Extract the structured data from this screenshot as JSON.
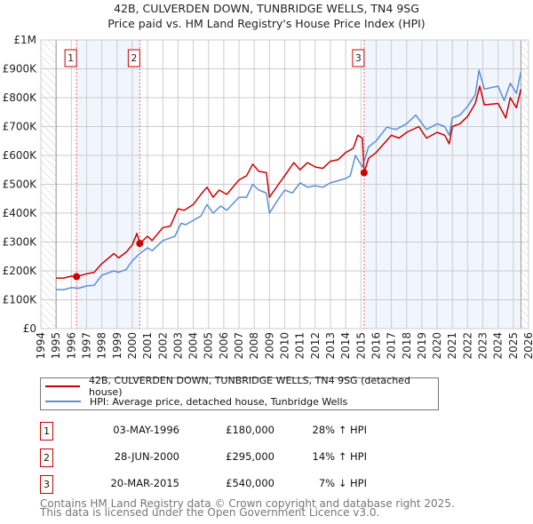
{
  "title_line1": "42B, CULVERDEN DOWN, TUNBRIDGE WELLS, TN4 9SG",
  "title_line2": "Price paid vs. HM Land Registry's House Price Index (HPI)",
  "chart_data": {
    "type": "line",
    "xlim": [
      1994,
      2026
    ],
    "ylim": [
      0,
      1000000
    ],
    "x_ticks": [
      "1994",
      "1995",
      "1996",
      "1997",
      "1998",
      "1999",
      "2000",
      "2001",
      "2002",
      "2003",
      "2004",
      "2005",
      "2006",
      "2007",
      "2008",
      "2009",
      "2010",
      "2011",
      "2012",
      "2013",
      "2014",
      "2015",
      "2016",
      "2017",
      "2018",
      "2019",
      "2020",
      "2021",
      "2022",
      "2023",
      "2024",
      "2025",
      "2026"
    ],
    "y_ticks": [
      {
        "v": 0,
        "label": "£0"
      },
      {
        "v": 100000,
        "label": "£100K"
      },
      {
        "v": 200000,
        "label": "£200K"
      },
      {
        "v": 300000,
        "label": "£300K"
      },
      {
        "v": 400000,
        "label": "£400K"
      },
      {
        "v": 500000,
        "label": "£500K"
      },
      {
        "v": 600000,
        "label": "£600K"
      },
      {
        "v": 700000,
        "label": "£700K"
      },
      {
        "v": 800000,
        "label": "£800K"
      },
      {
        "v": 900000,
        "label": "£900K"
      },
      {
        "v": 1000000,
        "label": "£1M"
      }
    ],
    "grid": true,
    "data_range": [
      1995,
      2025.5
    ],
    "shaded_periods": [
      [
        1996.34,
        2000.49
      ],
      [
        2015.21,
        2025.5
      ]
    ],
    "series": [
      {
        "name": "42B, CULVERDEN DOWN, TUNBRIDGE WELLS, TN4 9SG (detached house)",
        "color": "#cc0000",
        "points": [
          [
            1995,
            175000
          ],
          [
            1995.5,
            175000
          ],
          [
            1996,
            182000
          ],
          [
            1996.34,
            180000
          ],
          [
            1997,
            190000
          ],
          [
            1997.5,
            195000
          ],
          [
            1998,
            225000
          ],
          [
            1998.8,
            260000
          ],
          [
            1999.1,
            245000
          ],
          [
            1999.6,
            265000
          ],
          [
            2000,
            290000
          ],
          [
            2000.3,
            330000
          ],
          [
            2000.5,
            295000
          ],
          [
            2001,
            320000
          ],
          [
            2001.3,
            305000
          ],
          [
            2002,
            350000
          ],
          [
            2002.5,
            355000
          ],
          [
            2003,
            415000
          ],
          [
            2003.4,
            410000
          ],
          [
            2004,
            430000
          ],
          [
            2004.5,
            465000
          ],
          [
            2004.9,
            490000
          ],
          [
            2005.3,
            455000
          ],
          [
            2005.7,
            480000
          ],
          [
            2006.2,
            465000
          ],
          [
            2007,
            515000
          ],
          [
            2007.5,
            530000
          ],
          [
            2007.9,
            570000
          ],
          [
            2008.3,
            545000
          ],
          [
            2008.8,
            540000
          ],
          [
            2009.0,
            455000
          ],
          [
            2009.6,
            500000
          ],
          [
            2010,
            530000
          ],
          [
            2010.6,
            575000
          ],
          [
            2011,
            550000
          ],
          [
            2011.5,
            575000
          ],
          [
            2012,
            560000
          ],
          [
            2012.5,
            555000
          ],
          [
            2013,
            580000
          ],
          [
            2013.5,
            585000
          ],
          [
            2014,
            610000
          ],
          [
            2014.5,
            625000
          ],
          [
            2014.8,
            670000
          ],
          [
            2015.1,
            660000
          ],
          [
            2015.21,
            540000
          ],
          [
            2015.5,
            590000
          ],
          [
            2016,
            610000
          ],
          [
            2016.5,
            640000
          ],
          [
            2017,
            670000
          ],
          [
            2017.5,
            660000
          ],
          [
            2018,
            680000
          ],
          [
            2018.8,
            700000
          ],
          [
            2019.3,
            660000
          ],
          [
            2020,
            680000
          ],
          [
            2020.5,
            670000
          ],
          [
            2020.8,
            640000
          ],
          [
            2021,
            700000
          ],
          [
            2021.5,
            710000
          ],
          [
            2022,
            735000
          ],
          [
            2022.5,
            780000
          ],
          [
            2022.8,
            840000
          ],
          [
            2023.1,
            775000
          ],
          [
            2024,
            780000
          ],
          [
            2024.5,
            730000
          ],
          [
            2024.8,
            800000
          ],
          [
            2025.2,
            765000
          ],
          [
            2025.5,
            830000
          ]
        ]
      },
      {
        "name": "HPI: Average price, detached house, Tunbridge Wells",
        "color": "#5b8fd4",
        "points": [
          [
            1995,
            135000
          ],
          [
            1995.5,
            135000
          ],
          [
            1996,
            142000
          ],
          [
            1996.5,
            140000
          ],
          [
            1997,
            148000
          ],
          [
            1997.5,
            150000
          ],
          [
            1998,
            185000
          ],
          [
            1998.8,
            200000
          ],
          [
            1999.1,
            195000
          ],
          [
            1999.6,
            205000
          ],
          [
            2000,
            235000
          ],
          [
            2000.5,
            260000
          ],
          [
            2001,
            280000
          ],
          [
            2001.3,
            270000
          ],
          [
            2002,
            305000
          ],
          [
            2002.8,
            320000
          ],
          [
            2003.2,
            365000
          ],
          [
            2003.5,
            360000
          ],
          [
            2004,
            375000
          ],
          [
            2004.5,
            390000
          ],
          [
            2004.9,
            430000
          ],
          [
            2005.3,
            400000
          ],
          [
            2005.8,
            425000
          ],
          [
            2006.2,
            410000
          ],
          [
            2007,
            455000
          ],
          [
            2007.5,
            455000
          ],
          [
            2007.9,
            500000
          ],
          [
            2008.3,
            480000
          ],
          [
            2008.8,
            470000
          ],
          [
            2009.0,
            400000
          ],
          [
            2009.6,
            450000
          ],
          [
            2010,
            480000
          ],
          [
            2010.5,
            470000
          ],
          [
            2011,
            505000
          ],
          [
            2011.5,
            490000
          ],
          [
            2012,
            495000
          ],
          [
            2012.5,
            490000
          ],
          [
            2013,
            505000
          ],
          [
            2014,
            520000
          ],
          [
            2014.3,
            530000
          ],
          [
            2014.64,
            600000
          ],
          [
            2015.1,
            560000
          ],
          [
            2015.5,
            630000
          ],
          [
            2016,
            650000
          ],
          [
            2016.7,
            698000
          ],
          [
            2017.3,
            690000
          ],
          [
            2018,
            710000
          ],
          [
            2018.6,
            740000
          ],
          [
            2019.3,
            690000
          ],
          [
            2020,
            710000
          ],
          [
            2020.5,
            700000
          ],
          [
            2020.8,
            670000
          ],
          [
            2021,
            730000
          ],
          [
            2021.5,
            740000
          ],
          [
            2022,
            770000
          ],
          [
            2022.5,
            810000
          ],
          [
            2022.75,
            895000
          ],
          [
            2023.1,
            830000
          ],
          [
            2024,
            840000
          ],
          [
            2024.4,
            790000
          ],
          [
            2024.8,
            850000
          ],
          [
            2025.2,
            815000
          ],
          [
            2025.5,
            890000
          ]
        ]
      }
    ],
    "sales": [
      {
        "n": "1",
        "x": 1996.34,
        "y": 180000
      },
      {
        "n": "2",
        "x": 2000.49,
        "y": 295000
      },
      {
        "n": "3",
        "x": 2015.21,
        "y": 540000
      }
    ]
  },
  "legend": {
    "property": "42B, CULVERDEN DOWN, TUNBRIDGE WELLS, TN4 9SG (detached house)",
    "hpi": "HPI: Average price, detached house, Tunbridge Wells"
  },
  "transactions": [
    {
      "n": "1",
      "date": "03-MAY-1996",
      "price": "£180,000",
      "hpi": "28% ↑ HPI"
    },
    {
      "n": "2",
      "date": "28-JUN-2000",
      "price": "£295,000",
      "hpi": "14% ↑ HPI"
    },
    {
      "n": "3",
      "date": "20-MAR-2015",
      "price": "£540,000",
      "hpi": "7% ↓ HPI"
    }
  ],
  "footer": {
    "line1": "Contains HM Land Registry data © Crown copyright and database right 2025.",
    "line2": "This data is licensed under the Open Government Licence v3.0."
  }
}
